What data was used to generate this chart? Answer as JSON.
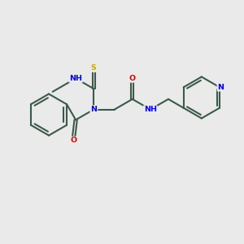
{
  "background_color": "#EAEAEA",
  "bond_color": "#3A5A4A",
  "bond_width": 1.5,
  "atom_colors": {
    "N": "#0000EE",
    "O": "#DD0000",
    "S": "#CCAA00",
    "C": "#3A5A4A",
    "H": "#3A5A4A"
  },
  "figsize": [
    3.0,
    3.0
  ],
  "dpi": 100,
  "xlim": [
    0,
    10
  ],
  "ylim": [
    0,
    10
  ]
}
